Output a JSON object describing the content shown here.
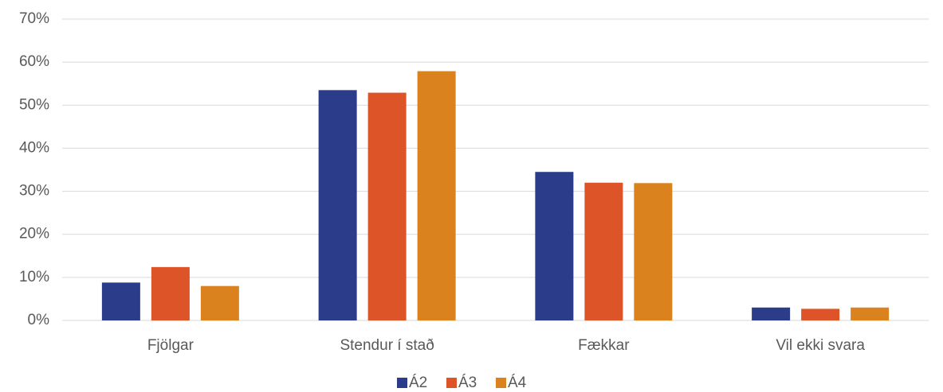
{
  "chart_data": {
    "type": "bar",
    "categories": [
      "Fjölgar",
      "Stendur í stað",
      "Fækkar",
      "Vil ekki svara"
    ],
    "series": [
      {
        "name": "Á2",
        "color": "#2b3d8a",
        "values": [
          8.8,
          53.5,
          34.5,
          3.0
        ]
      },
      {
        "name": "Á3",
        "color": "#dc5427",
        "values": [
          12.4,
          52.9,
          32.0,
          2.7
        ]
      },
      {
        "name": "Á4",
        "color": "#d9821e",
        "values": [
          8.0,
          57.9,
          31.9,
          3.0
        ]
      }
    ],
    "ylim": [
      0,
      70
    ],
    "yticks": [
      {
        "value": 0,
        "label": "0%"
      },
      {
        "value": 10,
        "label": "10%"
      },
      {
        "value": 20,
        "label": "20%"
      },
      {
        "value": 30,
        "label": "30%"
      },
      {
        "value": 40,
        "label": "40%"
      },
      {
        "value": 50,
        "label": "50%"
      },
      {
        "value": 60,
        "label": "60%"
      },
      {
        "value": 70,
        "label": "70%"
      }
    ],
    "grid": true,
    "legend": "bottom"
  }
}
